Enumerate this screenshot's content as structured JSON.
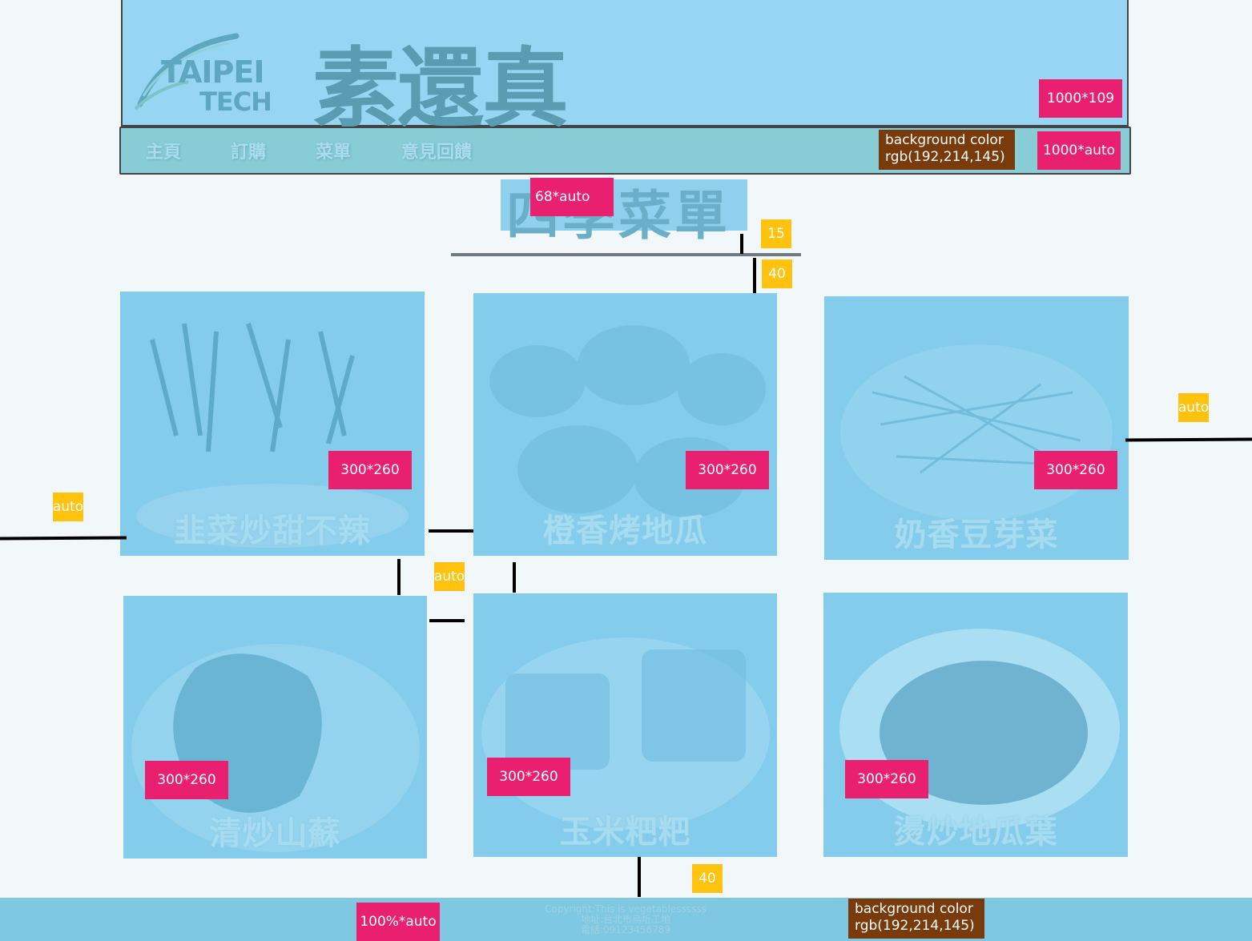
{
  "header": {
    "logo_line1": "TAIPEI",
    "logo_line2": "TECH",
    "brand": "素還真",
    "size_tag": "1000*109"
  },
  "nav": {
    "items": [
      "主頁",
      "訂購",
      "菜單",
      "意見回饋"
    ],
    "bg_tag_line1": "background color",
    "bg_tag_line2": "rgb(192,214,145)",
    "size_tag": "1000*auto"
  },
  "section": {
    "title": "四季菜單",
    "title_size_tag": "68*auto",
    "gap_title": "15",
    "gap_grid": "40"
  },
  "menu": {
    "items": [
      {
        "name": "韭菜炒甜不辣",
        "size": "300*260"
      },
      {
        "name": "橙香烤地瓜",
        "size": "300*260"
      },
      {
        "name": "奶香豆芽菜",
        "size": "300*260"
      },
      {
        "name": "清炒山蘇",
        "size": "300*260"
      },
      {
        "name": "玉米粑粑",
        "size": "300*260"
      },
      {
        "name": "燙炒地瓜葉",
        "size": "300*260"
      }
    ]
  },
  "spacing": {
    "left": "auto",
    "right": "auto",
    "between": "auto",
    "bottom": "40"
  },
  "footer": {
    "copyright": "Copyright:This is vegetablessssss",
    "address": "地址:台北市烏坵工地",
    "phone": "電話:09123456789",
    "size_tag": "100%*auto",
    "bg_tag_line1": "background color",
    "bg_tag_line2": "rgb(192,214,145)"
  },
  "colors": {
    "overlay_blue": "#84ccec",
    "tag_pink": "#e8206f",
    "tag_yellow": "#ffc20e",
    "tag_brown": "#7a3b0c"
  }
}
